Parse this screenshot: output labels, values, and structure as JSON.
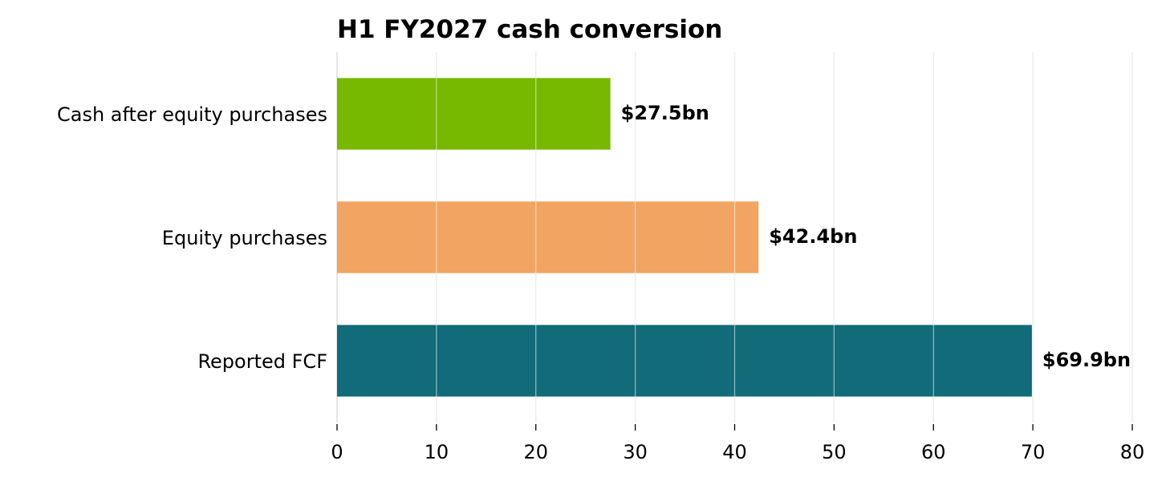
{
  "chart_data": {
    "type": "bar",
    "orientation": "horizontal",
    "title": "H1 FY2027 cash conversion",
    "xlabel": "",
    "ylabel": "",
    "categories": [
      "Cash after equity purchases",
      "Equity purchases",
      "Reported FCF"
    ],
    "values": [
      27.5,
      42.4,
      69.9
    ],
    "value_labels": [
      "$27.5bn",
      "$42.4bn",
      "$69.9bn"
    ],
    "colors": [
      "#77b800",
      "#f2a462",
      "#116b78"
    ],
    "xlim": [
      0,
      80
    ],
    "xticks": [
      0,
      10,
      20,
      30,
      40,
      50,
      60,
      70,
      80
    ],
    "grid": "vertical",
    "legend": "none"
  }
}
